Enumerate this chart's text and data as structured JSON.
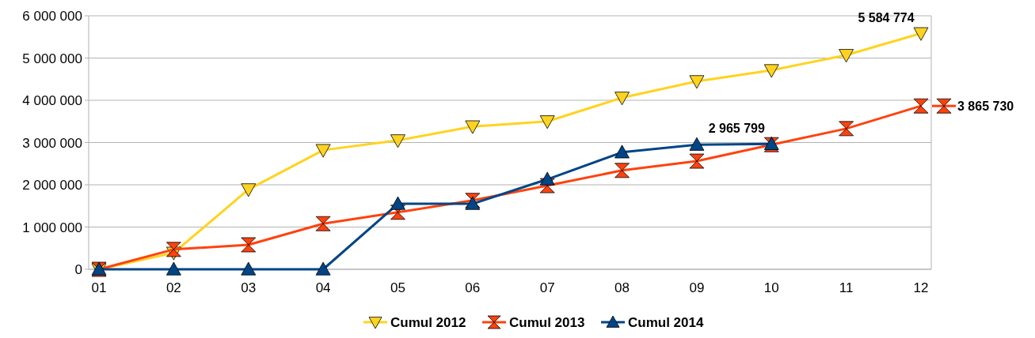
{
  "chart_data": {
    "type": "line",
    "categories": [
      "01",
      "02",
      "03",
      "04",
      "05",
      "06",
      "07",
      "08",
      "09",
      "10",
      "11",
      "12"
    ],
    "ylim": [
      0,
      6000000
    ],
    "yticks": [
      {
        "value": 0,
        "label": "0"
      },
      {
        "value": 1000000,
        "label": "1 000 000"
      },
      {
        "value": 2000000,
        "label": "2 000 000"
      },
      {
        "value": 3000000,
        "label": "3 000 000"
      },
      {
        "value": 4000000,
        "label": "4 000 000"
      },
      {
        "value": 5000000,
        "label": "5 000 000"
      },
      {
        "value": 6000000,
        "label": "6 000 000"
      }
    ],
    "grid": "y",
    "legend": "bottom",
    "line_style": "solid",
    "series": [
      {
        "name": "Cumul 2012",
        "color": "#ffd320",
        "marker": "triangle-down",
        "values": [
          0,
          390000,
          1890000,
          2820000,
          3050000,
          3380000,
          3500000,
          4060000,
          4450000,
          4710000,
          5070000,
          5584774
        ],
        "value_labels": [
          null,
          null,
          null,
          null,
          null,
          null,
          null,
          null,
          null,
          null,
          null,
          "5 584 774"
        ]
      },
      {
        "name": "Cumul 2013",
        "color": "#ff420e",
        "marker": "diamond",
        "values": [
          0,
          470000,
          580000,
          1080000,
          1350000,
          1630000,
          1980000,
          2340000,
          2560000,
          2950000,
          3330000,
          3865730
        ],
        "value_labels": [
          null,
          null,
          null,
          null,
          null,
          null,
          null,
          null,
          null,
          null,
          null,
          "3 865 730"
        ]
      },
      {
        "name": "Cumul 2014",
        "color": "#004586",
        "marker": "triangle",
        "values": [
          0,
          0,
          0,
          0,
          1550000,
          1550000,
          2130000,
          2770000,
          2950000,
          2965799,
          null,
          null
        ],
        "value_labels": [
          null,
          null,
          null,
          null,
          null,
          null,
          null,
          null,
          null,
          "2 965 799",
          null,
          null
        ]
      }
    ]
  }
}
